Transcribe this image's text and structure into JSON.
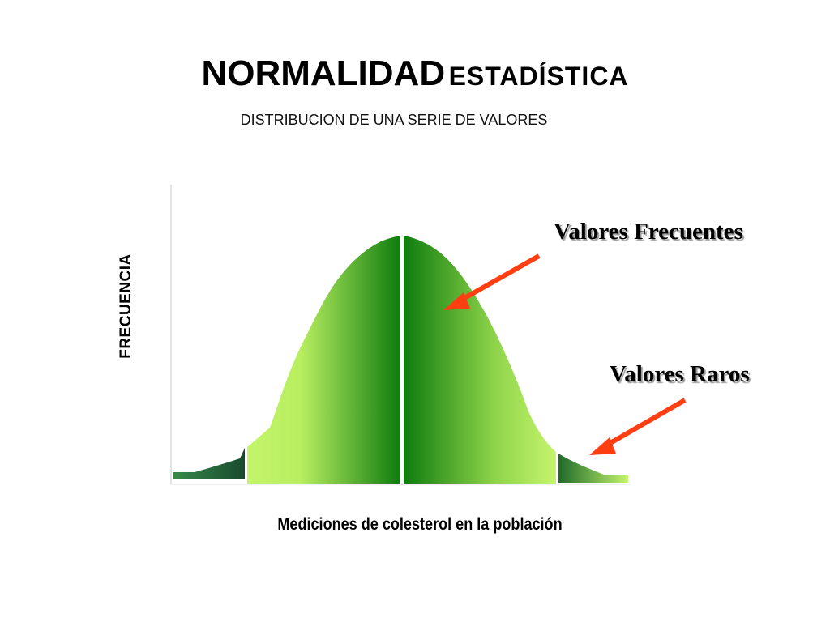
{
  "title": {
    "main": "NORMALIDAD",
    "secondary": "ESTADÍSTICA"
  },
  "subtitle": "DISTRIBUCION DE UNA SERIE DE VALORES",
  "axes": {
    "y_label": "FRECUENCIA",
    "x_label": "Mediciones de colesterol en la población"
  },
  "annotations": {
    "frequent": "Valores Frecuentes",
    "rare": "Valores Raros"
  },
  "colors": {
    "dark_green": "#0d7a0d",
    "light_green": "#c4f56c",
    "tail_dark": "#1c4f33",
    "arrow": "#ff3e12",
    "axis": "#c8c8c8",
    "mean_line": "#ffffff"
  }
}
